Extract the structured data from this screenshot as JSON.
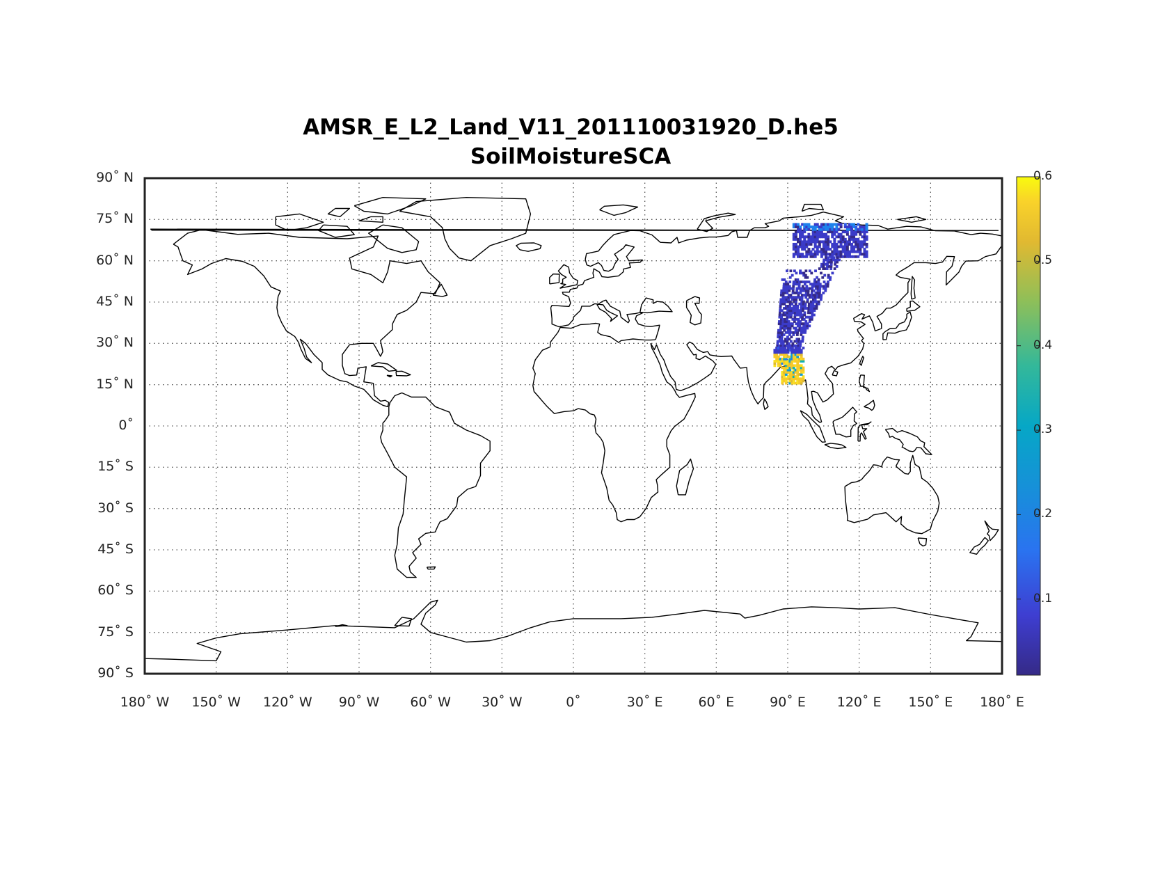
{
  "title_line1": "AMSR_E_L2_Land_V11_201110031920_D.he5",
  "title_line2": "SoilMoistureSCA",
  "lat_labels": [
    "90˚ N",
    "75˚ N",
    "60˚ N",
    "45˚ N",
    "30˚ N",
    "15˚ N",
    "0˚",
    "15˚ S",
    "30˚ S",
    "45˚ S",
    "60˚ S",
    "75˚ S",
    "90˚ S"
  ],
  "lon_labels": [
    "180˚ W",
    "150˚ W",
    "120˚ W",
    "90˚ W",
    "60˚ W",
    "30˚ W",
    "0˚",
    "30˚ E",
    "60˚ E",
    "90˚ E",
    "120˚ E",
    "150˚ E",
    "180˚ E"
  ],
  "colorbar": {
    "ticks": [
      "0.6",
      "0.5",
      "0.4",
      "0.3",
      "0.2",
      "0.1"
    ],
    "tick_values": [
      0.6,
      0.5,
      0.4,
      0.3,
      0.2,
      0.1
    ],
    "range": [
      0.01,
      0.6
    ],
    "colormap": "parula"
  },
  "map_data": {
    "projection": "equirectangular",
    "lon_range": [
      -180,
      180
    ],
    "lat_range": [
      -90,
      90
    ],
    "grid": "dotted",
    "swath": {
      "description_region": "Siberia to Bay of Bengal",
      "lon_bounds": [
        82,
        102
      ],
      "lat_bounds": [
        15,
        75
      ],
      "dominant_values": {
        "north": 0.05,
        "south": 0.55
      }
    }
  },
  "colors": {
    "frame": "#222222",
    "coast": "#000000",
    "grid": "#555555"
  }
}
